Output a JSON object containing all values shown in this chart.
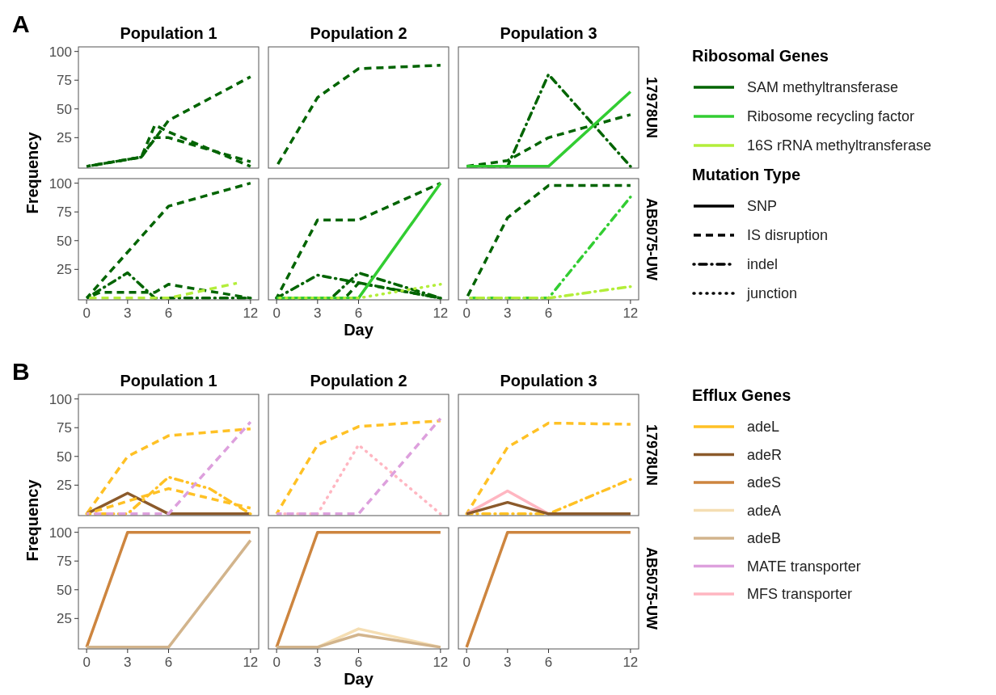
{
  "chart_data": [
    {
      "type": "line",
      "title": "Population 1",
      "annotations": [
        "A"
      ],
      "ylabel": "Frequency",
      "xlim": [
        -0.6,
        12.6
      ],
      "ylim": [
        -1.5,
        104
      ],
      "yticks": [
        25,
        50,
        75,
        100
      ],
      "tick_labels": "y",
      "series": [
        {
          "color": "#006400",
          "line_style": "dashed",
          "x": [
            0,
            4,
            6,
            12
          ],
          "values": [
            0,
            8,
            40,
            78
          ]
        },
        {
          "color": "#006400",
          "line_style": "dashed",
          "x": [
            0,
            4,
            5,
            6,
            10,
            12
          ],
          "values": [
            0,
            8,
            25,
            25,
            11,
            4
          ]
        },
        {
          "color": "#006400",
          "line_style": "dashed",
          "x": [
            0,
            4,
            5,
            6,
            12
          ],
          "values": [
            0,
            8,
            36,
            30,
            0
          ]
        }
      ]
    },
    {
      "type": "line",
      "title": "Population 2",
      "xlim": [
        -0.6,
        12.6
      ],
      "ylim": [
        -1.5,
        104
      ],
      "tick_labels": false,
      "series": [
        {
          "color": "#006400",
          "line_style": "dashed",
          "x": [
            0,
            3,
            6,
            12
          ],
          "values": [
            0,
            60,
            85,
            88
          ]
        }
      ]
    },
    {
      "type": "line",
      "title": "Population 3",
      "y2label": "17978UN",
      "xlim": [
        -0.6,
        12.6
      ],
      "ylim": [
        -1.5,
        104
      ],
      "tick_labels": false,
      "series": [
        {
          "color": "#006400",
          "line_style": "dashdot",
          "x": [
            0,
            3,
            6,
            12
          ],
          "values": [
            0,
            0,
            80,
            0
          ]
        },
        {
          "color": "#006400",
          "line_style": "dashed",
          "x": [
            0,
            3,
            6,
            12
          ],
          "values": [
            0,
            5,
            25,
            45
          ]
        },
        {
          "color": "#32cd32",
          "line_style": "solid",
          "x": [
            0,
            6,
            12
          ],
          "values": [
            0,
            0,
            65
          ]
        }
      ]
    },
    {
      "type": "line",
      "xlim": [
        -0.6,
        12.6
      ],
      "xticks": [
        0,
        3,
        6,
        12
      ],
      "ylim": [
        -1.5,
        104
      ],
      "yticks": [
        25,
        50,
        75,
        100
      ],
      "series": [
        {
          "color": "#006400",
          "line_style": "dashed",
          "x": [
            0,
            3,
            6,
            12
          ],
          "values": [
            0,
            40,
            80,
            100
          ]
        },
        {
          "color": "#006400",
          "line_style": "dashdot",
          "x": [
            0,
            3,
            5,
            12
          ],
          "values": [
            0,
            22,
            0,
            0
          ]
        },
        {
          "color": "#006400",
          "line_style": "dashed",
          "x": [
            0,
            1,
            5,
            6,
            12
          ],
          "values": [
            0,
            5,
            5,
            12,
            0
          ]
        },
        {
          "color": "#b3ee3a",
          "line_style": "dashed",
          "x": [
            0,
            6,
            11
          ],
          "values": [
            0,
            0,
            13
          ]
        }
      ]
    },
    {
      "type": "line",
      "xlabel": "Day",
      "xlim": [
        -0.6,
        12.6
      ],
      "xticks": [
        0,
        3,
        6,
        12
      ],
      "ylim": [
        -1.5,
        104
      ],
      "tick_labels": "x",
      "series": [
        {
          "color": "#006400",
          "line_style": "dashed",
          "x": [
            0,
            3,
            6,
            12
          ],
          "values": [
            0,
            68,
            68,
            100
          ]
        },
        {
          "color": "#006400",
          "line_style": "dashdot",
          "x": [
            0,
            3,
            12
          ],
          "values": [
            0,
            20,
            0
          ]
        },
        {
          "color": "#006400",
          "line_style": "dashdot",
          "x": [
            0,
            4,
            6,
            12
          ],
          "values": [
            0,
            0,
            22,
            0
          ]
        },
        {
          "color": "#006400",
          "line_style": "dashed",
          "x": [
            0,
            5,
            6,
            12
          ],
          "values": [
            0,
            0,
            13,
            0
          ]
        },
        {
          "color": "#32cd32",
          "line_style": "solid",
          "x": [
            0,
            6,
            12
          ],
          "values": [
            0,
            0,
            100
          ]
        },
        {
          "color": "#b3ee3a",
          "line_style": "dotted",
          "x": [
            0,
            6,
            12
          ],
          "values": [
            0,
            0,
            12
          ]
        }
      ]
    },
    {
      "type": "line",
      "y2label": "AB5075-UW",
      "xlim": [
        -0.6,
        12.6
      ],
      "xticks": [
        0,
        3,
        6,
        12
      ],
      "ylim": [
        -1.5,
        104
      ],
      "tick_labels": "x",
      "series": [
        {
          "color": "#006400",
          "line_style": "dashed",
          "x": [
            0,
            3,
            6,
            12
          ],
          "values": [
            0,
            70,
            98,
            98
          ]
        },
        {
          "color": "#32cd32",
          "line_style": "dashdot",
          "x": [
            0,
            6,
            12
          ],
          "values": [
            0,
            0,
            88
          ]
        },
        {
          "color": "#b3ee3a",
          "line_style": "dashdot",
          "x": [
            0,
            6,
            12
          ],
          "values": [
            0,
            0,
            10
          ]
        }
      ]
    },
    {
      "type": "other",
      "legend_title": "Ribosomal Genes",
      "legend": "right",
      "series": [
        {
          "name": "SAM methyltransferase",
          "color": "#006400"
        },
        {
          "name": "Ribosome recycling factor",
          "color": "#32cd32"
        },
        {
          "name": "16S rRNA methyltransferase",
          "color": "#b3ee3a"
        }
      ]
    },
    {
      "type": "other",
      "legend_title": "Mutation Type",
      "legend": "right",
      "series": [
        {
          "name": "SNP",
          "color": "#000000",
          "line_style": "solid"
        },
        {
          "name": "IS disruption",
          "color": "#000000",
          "line_style": "dashed"
        },
        {
          "name": "indel",
          "color": "#000000",
          "line_style": "dashdot"
        },
        {
          "name": "junction",
          "color": "#000000",
          "line_style": "dotted"
        }
      ]
    },
    {
      "type": "line",
      "title": "Population 1",
      "annotations": [
        "B"
      ],
      "ylabel": "Frequency",
      "xlim": [
        -0.6,
        12.6
      ],
      "ylim": [
        -1.5,
        104
      ],
      "yticks": [
        25,
        50,
        75,
        100
      ],
      "tick_labels": "y",
      "series": [
        {
          "color": "#ffc125",
          "line_style": "dashed",
          "x": [
            0,
            3,
            6,
            12
          ],
          "values": [
            0,
            50,
            68,
            74
          ]
        },
        {
          "color": "#8b5a2b",
          "line_style": "solid",
          "x": [
            0,
            3,
            6,
            12
          ],
          "values": [
            0,
            18,
            0,
            0
          ]
        },
        {
          "color": "#ffc125",
          "line_style": "dashdot",
          "x": [
            0,
            3,
            6,
            9,
            12
          ],
          "values": [
            0,
            0,
            32,
            22,
            0
          ]
        },
        {
          "color": "#ffc125",
          "line_style": "dashed",
          "x": [
            0,
            6,
            12
          ],
          "values": [
            0,
            22,
            5
          ]
        },
        {
          "color": "#dda0dd",
          "line_style": "dashed",
          "x": [
            0,
            6,
            12
          ],
          "values": [
            0,
            0,
            80
          ]
        }
      ]
    },
    {
      "type": "line",
      "title": "Population 2",
      "xlim": [
        -0.6,
        12.6
      ],
      "ylim": [
        -1.5,
        104
      ],
      "tick_labels": false,
      "series": [
        {
          "color": "#ffc125",
          "line_style": "dashed",
          "x": [
            0,
            3,
            6,
            12
          ],
          "values": [
            0,
            60,
            76,
            81
          ]
        },
        {
          "color": "#ffb6c1",
          "line_style": "dotted",
          "x": [
            0,
            3,
            6,
            12
          ],
          "values": [
            0,
            0,
            60,
            0
          ]
        },
        {
          "color": "#dda0dd",
          "line_style": "dashed",
          "x": [
            0,
            6,
            12
          ],
          "values": [
            0,
            0,
            83
          ]
        }
      ]
    },
    {
      "type": "line",
      "title": "Population 3",
      "y2label": "17978UN",
      "xlim": [
        -0.6,
        12.6
      ],
      "ylim": [
        -1.5,
        104
      ],
      "tick_labels": false,
      "series": [
        {
          "color": "#ffc125",
          "line_style": "dashed",
          "x": [
            0,
            3,
            6,
            12
          ],
          "values": [
            0,
            58,
            79,
            78
          ]
        },
        {
          "color": "#ffc125",
          "line_style": "dashdot",
          "x": [
            0,
            6,
            12
          ],
          "values": [
            0,
            0,
            30
          ]
        },
        {
          "color": "#ffb6c1",
          "line_style": "solid",
          "x": [
            0,
            3,
            6,
            12
          ],
          "values": [
            0,
            20,
            0,
            0
          ]
        },
        {
          "color": "#8b5a2b",
          "line_style": "solid",
          "x": [
            0,
            3,
            6,
            12
          ],
          "values": [
            0,
            10,
            0,
            0
          ]
        }
      ]
    },
    {
      "type": "line",
      "xlim": [
        -0.6,
        12.6
      ],
      "xticks": [
        0,
        3,
        6,
        12
      ],
      "ylim": [
        -1.5,
        104
      ],
      "yticks": [
        25,
        50,
        75,
        100
      ],
      "series": [
        {
          "color": "#cd853f",
          "line_style": "solid",
          "x": [
            0,
            3,
            6,
            12
          ],
          "values": [
            0,
            100,
            100,
            100
          ]
        },
        {
          "color": "#d2b48c",
          "line_style": "solid",
          "x": [
            0,
            6,
            12
          ],
          "values": [
            0,
            0,
            93
          ]
        }
      ]
    },
    {
      "type": "line",
      "xlabel": "Day",
      "xlim": [
        -0.6,
        12.6
      ],
      "xticks": [
        0,
        3,
        6,
        12
      ],
      "ylim": [
        -1.5,
        104
      ],
      "tick_labels": "x",
      "series": [
        {
          "color": "#cd853f",
          "line_style": "solid",
          "x": [
            0,
            3,
            12
          ],
          "values": [
            0,
            100,
            100
          ]
        },
        {
          "color": "#f5deb3",
          "line_style": "solid",
          "x": [
            0,
            3,
            6,
            12
          ],
          "values": [
            0,
            0,
            16,
            0
          ]
        },
        {
          "color": "#d2b48c",
          "line_style": "solid",
          "x": [
            0,
            3,
            6,
            12
          ],
          "values": [
            0,
            0,
            11,
            0
          ]
        }
      ]
    },
    {
      "type": "line",
      "y2label": "AB5075-UW",
      "xlim": [
        -0.6,
        12.6
      ],
      "xticks": [
        0,
        3,
        6,
        12
      ],
      "ylim": [
        -1.5,
        104
      ],
      "tick_labels": "x",
      "series": [
        {
          "color": "#cd853f",
          "line_style": "solid",
          "x": [
            0,
            3,
            12
          ],
          "values": [
            0,
            100,
            100
          ]
        }
      ]
    },
    {
      "type": "other",
      "legend_title": "Efflux Genes",
      "legend": "right",
      "series": [
        {
          "name": "adeL",
          "color": "#ffc125"
        },
        {
          "name": "adeR",
          "color": "#8b5a2b"
        },
        {
          "name": "adeS",
          "color": "#cd853f"
        },
        {
          "name": "adeA",
          "color": "#f5deb3"
        },
        {
          "name": "adeB",
          "color": "#d2b48c"
        },
        {
          "name": "MATE transporter",
          "color": "#dda0dd"
        },
        {
          "name": "MFS transporter",
          "color": "#ffb6c1"
        }
      ]
    }
  ]
}
